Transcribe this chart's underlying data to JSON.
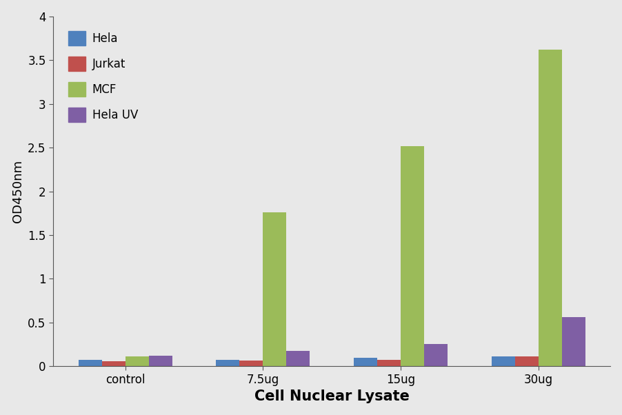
{
  "categories": [
    "control",
    "7.5ug",
    "15ug",
    "30ug"
  ],
  "series": {
    "Hela": [
      0.07,
      0.07,
      0.1,
      0.11
    ],
    "Jurkat": [
      0.055,
      0.065,
      0.075,
      0.115
    ],
    "MCF": [
      0.115,
      1.76,
      2.52,
      3.62
    ],
    "Hela UV": [
      0.12,
      0.175,
      0.255,
      0.565
    ]
  },
  "colors": {
    "Hela": "#4F81BD",
    "Jurkat": "#C0504D",
    "MCF": "#9BBB59",
    "Hela UV": "#7F5FA4"
  },
  "ylabel": "OD450nm",
  "xlabel": "Cell Nuclear Lysate",
  "ylim": [
    0,
    4.0
  ],
  "yticks": [
    0,
    0.5,
    1.0,
    1.5,
    2.0,
    2.5,
    3.0,
    3.5,
    4.0
  ],
  "ytick_labels": [
    "0",
    "0.5",
    "1",
    "1.5",
    "2",
    "2.5",
    "3",
    "3.5",
    "4"
  ],
  "background_color": "#E8E8E8",
  "plot_bg_color": "#E8E8E8",
  "bar_width": 0.17,
  "xlabel_fontsize": 15,
  "ylabel_fontsize": 13,
  "tick_fontsize": 12,
  "legend_fontsize": 12,
  "legend_handle_size": 14
}
